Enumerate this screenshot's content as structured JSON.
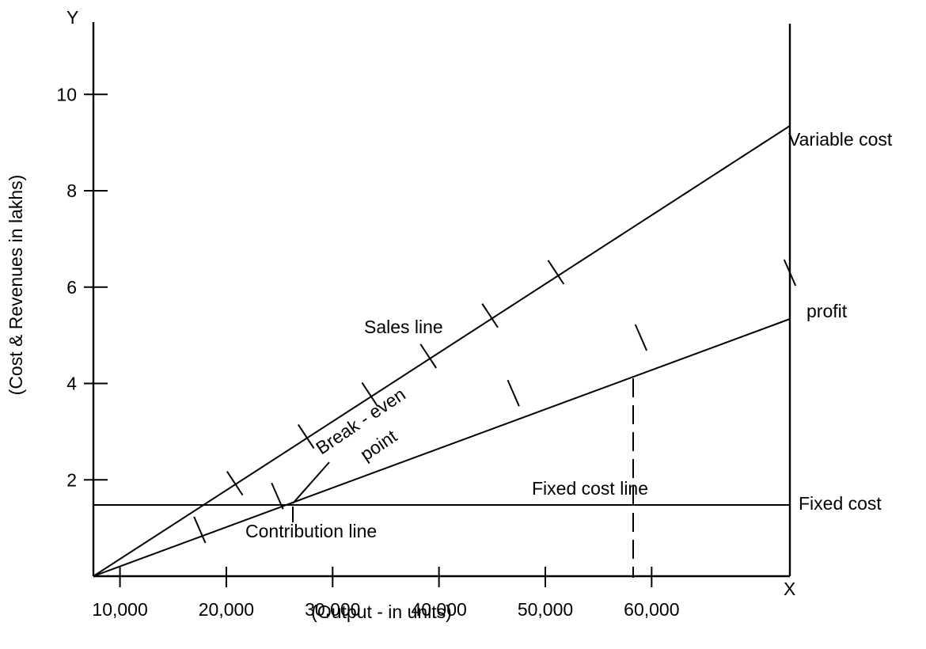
{
  "chart_data": {
    "type": "line",
    "title": "",
    "xlabel": "(Output - in units)",
    "ylabel": "(Cost & Revenues in lakhs)",
    "x_axis_letter": "X",
    "y_axis_letter": "Y",
    "x_ticks": [
      {
        "value": 10000,
        "label": "10,000"
      },
      {
        "value": 20000,
        "label": "20,000"
      },
      {
        "value": 30000,
        "label": "30,000"
      },
      {
        "value": 40000,
        "label": "40,000"
      },
      {
        "value": 50000,
        "label": "50,000"
      },
      {
        "value": 60000,
        "label": "60,000"
      }
    ],
    "y_ticks": [
      {
        "value": 2,
        "label": "2"
      },
      {
        "value": 4,
        "label": "4"
      },
      {
        "value": 6,
        "label": "6"
      },
      {
        "value": 8,
        "label": "8"
      },
      {
        "value": 10,
        "label": "10"
      }
    ],
    "xlim": [
      7500,
      73000
    ],
    "ylim": [
      0,
      11.5
    ],
    "series": [
      {
        "name": "Sales line",
        "x": [
          7500,
          73000
        ],
        "y": [
          0,
          9.5
        ],
        "ticks_at": [
          20800,
          27500,
          33500,
          39000,
          44800,
          51000
        ]
      },
      {
        "name": "Contribution line",
        "x": [
          7500,
          73000
        ],
        "y": [
          0,
          6.3
        ],
        "ticks_at": [
          17500,
          24800,
          47000,
          59000,
          73000
        ]
      },
      {
        "name": "Fixed cost line",
        "x": [
          7500,
          73000
        ],
        "y": [
          2.1,
          2.1
        ]
      }
    ],
    "break_even": {
      "x": 29000,
      "y": 2.1
    },
    "profit_marker": {
      "x": 59000,
      "y": 5.3
    },
    "annotations": {
      "variable_cost": "Variable cost",
      "profit": "profit",
      "fixed_cost": "Fixed cost",
      "sales_line": "Sales line",
      "fixed_cost_line": "Fixed cost line",
      "contribution_line": "Contribution line",
      "break_even_1": "Break - even",
      "break_even_2": "point"
    }
  }
}
